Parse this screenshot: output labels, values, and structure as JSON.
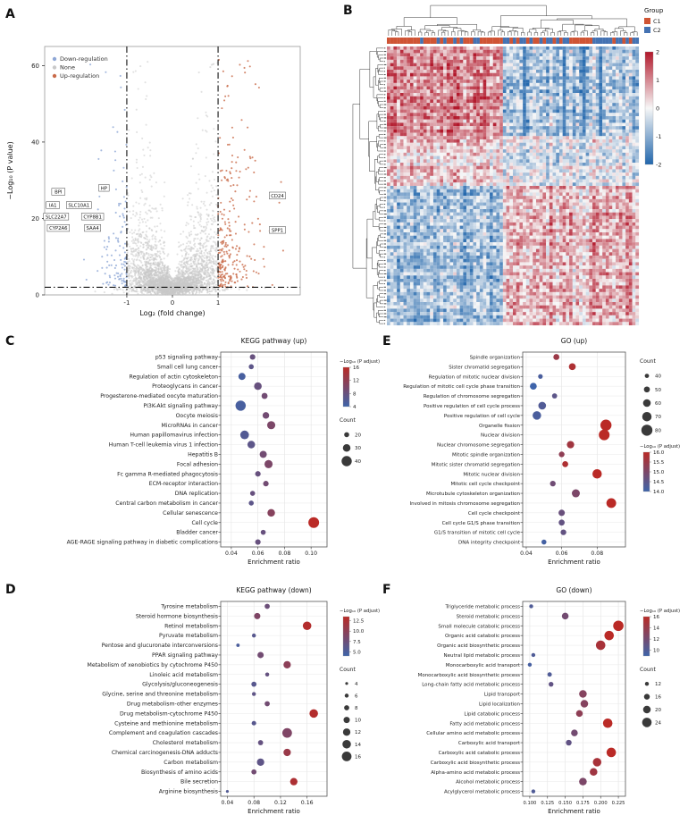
{
  "panel_labels": [
    "A",
    "B",
    "C",
    "D",
    "E",
    "F"
  ],
  "chart_data": [
    {
      "id": "volcano",
      "panel": "A",
      "type": "scatter",
      "title": "",
      "xlabel": "Log₂ (fold change)",
      "ylabel": "−Log₁₀ (P value)",
      "xlim": [
        -2.8,
        2.8
      ],
      "ylim": [
        0,
        65
      ],
      "xticks": [
        -1,
        0,
        1
      ],
      "yticks": [
        0,
        20,
        40,
        60
      ],
      "legend": [
        {
          "label": "Down-regulation",
          "color": "#8fa7d6"
        },
        {
          "label": "None",
          "color": "#c9c9c9"
        },
        {
          "label": "Up-regulation",
          "color": "#c96b4a"
        }
      ],
      "thresholds": {
        "vlines": [
          -1,
          1
        ],
        "hline": 2
      },
      "gene_labels": [
        {
          "text": "BPI",
          "x": -2.5,
          "y": 27
        },
        {
          "text": "HP",
          "x": -1.5,
          "y": 28
        },
        {
          "text": "IA1",
          "x": -2.62,
          "y": 23.5
        },
        {
          "text": "SLC10A1",
          "x": -2.05,
          "y": 23.5
        },
        {
          "text": "SLC22A7",
          "x": -2.55,
          "y": 20.5
        },
        {
          "text": "CYP8B1",
          "x": -1.75,
          "y": 20.5
        },
        {
          "text": "CYP2A6",
          "x": -2.5,
          "y": 17.5
        },
        {
          "text": "SAA4",
          "x": -1.75,
          "y": 17.5
        },
        {
          "text": "CD24",
          "x": 2.3,
          "y": 26
        },
        {
          "text": "SPP1",
          "x": 2.3,
          "y": 17
        }
      ],
      "sim": {
        "seed": 9,
        "n": 3800
      }
    },
    {
      "id": "heatmap",
      "panel": "B",
      "type": "heatmap",
      "legend_group_title": "Group",
      "groups": [
        {
          "label": "C1",
          "color": "#cf5434"
        },
        {
          "label": "C2",
          "color": "#4472b2"
        }
      ],
      "colorbar": {
        "ticks": [
          2,
          1,
          0,
          -1,
          -2
        ],
        "max_color": "#b2182b",
        "mid_color": "#f7f7f7",
        "min_color": "#2166ac"
      },
      "grid": {
        "rows": 84,
        "cols": 76,
        "seed": 11,
        "blocks": [
          {
            "r": [
              0,
              0.32
            ],
            "c": [
              0,
              0.45
            ],
            "bias": 1.25
          },
          {
            "r": [
              0,
              0.32
            ],
            "c": [
              0.45,
              1
            ],
            "bias": -0.85
          },
          {
            "r": [
              0.32,
              0.5
            ],
            "c": [
              0,
              0.45
            ],
            "bias": 0.55
          },
          {
            "r": [
              0.32,
              0.5
            ],
            "c": [
              0.45,
              1
            ],
            "bias": -0.25
          },
          {
            "r": [
              0.5,
              1
            ],
            "c": [
              0,
              0.45
            ],
            "bias": -0.95
          },
          {
            "r": [
              0.5,
              1
            ],
            "c": [
              0.45,
              1
            ],
            "bias": 0.8
          }
        ]
      }
    },
    {
      "id": "kegg_up",
      "panel": "C",
      "type": "bubble",
      "title": "KEGG pathway (up)",
      "xlabel": "Enrichment ratio",
      "xlim": [
        0.032,
        0.112
      ],
      "xticks": [
        0.04,
        0.06,
        0.08,
        0.1
      ],
      "xtick_decimals": 2,
      "color_legend": {
        "title": "−Log₁₀ (P adjust)",
        "domain": [
          4,
          16
        ],
        "ticks": [
          16,
          12,
          8,
          4
        ],
        "tick_decimals": 0
      },
      "count_legend": {
        "title": "Count",
        "values": [
          20,
          30,
          40
        ],
        "count_range": [
          20,
          42
        ],
        "r_range": [
          2.8,
          6
        ]
      },
      "legend_order": [
        "color",
        "count"
      ],
      "categories": [
        "p53 signaling pathway",
        "Small cell lung cancer",
        "Regulation of actin cytoskeleton",
        "Proteoglycans in cancer",
        "Progesterone-mediated oocyte maturation",
        "PI3K-Akt signaling pathway",
        "Oocyte meiosis",
        "MicroRNAs in cancer",
        "Human papillomavirus infection",
        "Human T-cell leukemia virus 1 infection",
        "Hepatitis B",
        "Focal adhesion",
        "Fc gamma R-mediated phagocytosis",
        "ECM-receptor interaction",
        "DNA replication",
        "Central carbon metabolism in cancer",
        "Cellular senescence",
        "Cell cycle",
        "Bladder cancer",
        "AGE-RAGE signaling pathway in diabetic complications"
      ],
      "x": [
        0.056,
        0.055,
        0.048,
        0.06,
        0.065,
        0.047,
        0.066,
        0.07,
        0.05,
        0.055,
        0.064,
        0.068,
        0.06,
        0.066,
        0.056,
        0.055,
        0.07,
        0.102,
        0.064,
        0.06
      ],
      "count": [
        22,
        20,
        28,
        30,
        24,
        40,
        26,
        32,
        34,
        30,
        28,
        32,
        22,
        22,
        20,
        20,
        30,
        42,
        20,
        22
      ],
      "padj": [
        8,
        7,
        5,
        8,
        9,
        5,
        9,
        10,
        6,
        7,
        9,
        10,
        8,
        9,
        8,
        7,
        11,
        16,
        8,
        8
      ]
    },
    {
      "id": "kegg_down",
      "panel": "D",
      "type": "bubble",
      "title": "KEGG pathway (down)",
      "xlabel": "Enrichment ratio",
      "xlim": [
        0.03,
        0.19
      ],
      "xticks": [
        0.04,
        0.08,
        0.12,
        0.16
      ],
      "xtick_decimals": 2,
      "color_legend": {
        "title": "−Log₁₀ (P adjust)",
        "domain": [
          4,
          13.5
        ],
        "ticks": [
          12.5,
          10,
          7.5,
          5
        ],
        "tick_decimals": 1
      },
      "count_legend": {
        "title": "Count",
        "values": [
          4,
          6,
          8,
          10,
          12,
          14,
          16
        ],
        "count_range": [
          4,
          16
        ],
        "r_range": [
          1.6,
          5.4
        ]
      },
      "legend_order": [
        "color",
        "count"
      ],
      "categories": [
        "Tyrosine metabolism",
        "Steroid hormone biosynthesis",
        "Retinol metabolism",
        "Pyruvate metabolism",
        "Pentose and glucuronate interconversions",
        "PPAR signaling pathway",
        "Metabolism of xenobiotics by cytochrome P450",
        "Linoleic acid metabolism",
        "Glycolysis/gluconeogenesis",
        "Glycine, serine and threonine metabolism",
        "Drug metabolism-other enzymes",
        "Drug metabolism-cytochrome P450",
        "Cysteine and methionine metabolism",
        "Complement and coagulation cascades",
        "Cholesterol metabolism",
        "Chemical carcinogenesis-DNA adducts",
        "Carbon metabolism",
        "Biosynthesis of amino acids",
        "Bile secretion",
        "Arginine biosynthesis"
      ],
      "x": [
        0.1,
        0.085,
        0.16,
        0.08,
        0.056,
        0.09,
        0.13,
        0.1,
        0.08,
        0.08,
        0.1,
        0.17,
        0.08,
        0.13,
        0.09,
        0.13,
        0.09,
        0.08,
        0.14,
        0.04
      ],
      "count": [
        8,
        10,
        14,
        6,
        5,
        10,
        12,
        6,
        8,
        6,
        8,
        14,
        7,
        16,
        8,
        12,
        12,
        8,
        12,
        4
      ],
      "padj": [
        7.5,
        9,
        13,
        6,
        5,
        8,
        10,
        7,
        6,
        6.5,
        8,
        13,
        6,
        9,
        7,
        11,
        6.5,
        8,
        12.5,
        5.5
      ]
    },
    {
      "id": "go_up",
      "panel": "E",
      "type": "bubble",
      "title": "GO (up)",
      "xlabel": "Enrichment ratio",
      "xlim": [
        0.038,
        0.096
      ],
      "xticks": [
        0.04,
        0.06,
        0.08
      ],
      "xtick_decimals": 2,
      "color_legend": {
        "title": "−Log₁₀ (P adjust)",
        "domain": [
          14,
          16
        ],
        "ticks": [
          16,
          15.5,
          15,
          14.5,
          14
        ],
        "tick_decimals": 1
      },
      "count_legend": {
        "title": "Count",
        "values": [
          40,
          50,
          60,
          70,
          80
        ],
        "count_range": [
          40,
          80
        ],
        "r_range": [
          2.4,
          6.2
        ]
      },
      "legend_order": [
        "count",
        "color"
      ],
      "categories": [
        "Spindle organization",
        "Sister chromatid segregation",
        "Regulation of mitotic nuclear division",
        "Regulation of mitotic cell cycle phase transition",
        "Regulation of chromosome segregation",
        "Positive regulation of cell cycle process",
        "Positive regulation of cell cycle",
        "Organelle fission",
        "Nuclear division",
        "Nuclear chromosome segregation",
        "Mitotic spindle organization",
        "Mitotic sister chromatid segregation",
        "Mitotic nuclear division",
        "Mitotic cell cycle checkpoint",
        "Microtubule cytoskeleton organization",
        "Involved in mitosis chromosome segregation",
        "Cell cycle checkpoint",
        "Cell cycle G1/S phase transition",
        "G1/S transition of mitotic cell cycle",
        "DNA integrity checkpoint"
      ],
      "x": [
        0.057,
        0.066,
        0.048,
        0.044,
        0.056,
        0.049,
        0.046,
        0.085,
        0.084,
        0.065,
        0.06,
        0.062,
        0.08,
        0.055,
        0.068,
        0.088,
        0.06,
        0.06,
        0.061,
        0.05
      ],
      "count": [
        50,
        55,
        42,
        55,
        45,
        60,
        65,
        80,
        78,
        58,
        48,
        50,
        70,
        48,
        62,
        72,
        52,
        50,
        48,
        44
      ],
      "padj": [
        15.5,
        15.8,
        14.2,
        14,
        14.5,
        14.3,
        14.2,
        16,
        16,
        15.6,
        15.3,
        15.8,
        16,
        14.8,
        15,
        16,
        14.7,
        14.6,
        14.6,
        14.1
      ]
    },
    {
      "id": "go_down",
      "panel": "F",
      "type": "bubble",
      "title": "GO (down)",
      "xlabel": "Enrichment ratio",
      "xlim": [
        0.09,
        0.235
      ],
      "xticks": [
        0.1,
        0.125,
        0.15,
        0.175,
        0.2,
        0.225
      ],
      "xtick_decimals": 3,
      "color_legend": {
        "title": "−Log₁₀ (P adjust)",
        "domain": [
          9,
          16
        ],
        "ticks": [
          16,
          14,
          12,
          10
        ],
        "tick_decimals": 0
      },
      "count_legend": {
        "title": "Count",
        "values": [
          12,
          16,
          20,
          24
        ],
        "count_range": [
          12,
          26
        ],
        "r_range": [
          2.2,
          5.8
        ]
      },
      "legend_order": [
        "color",
        "count"
      ],
      "categories": [
        "Triglyceride metabolic process",
        "Steroid metabolic process",
        "Small molecule catabolic process",
        "Organic acid catabolic process",
        "Organic acid biosynthetic process",
        "Neutral lipid metabolic process",
        "Monocarboxylic acid transport",
        "Monocarboxylic acid biosynthetic process",
        "Long-chain fatty acid metabolic process",
        "Lipid transport",
        "Lipid localization",
        "Lipid catabolic process",
        "Fatty acid metabolic process",
        "Cellular amino acid metabolic process",
        "Carboxylic acid transport",
        "Carboxylic acid catabolic process",
        "Carboxylic acid biosynthetic process",
        "Alpha-amino acid metabolic process",
        "Alcohol metabolic process",
        "Acylglycerol metabolic process"
      ],
      "x": [
        0.102,
        0.15,
        0.225,
        0.212,
        0.2,
        0.105,
        0.1,
        0.128,
        0.13,
        0.175,
        0.177,
        0.17,
        0.21,
        0.163,
        0.155,
        0.215,
        0.195,
        0.19,
        0.175,
        0.105
      ],
      "count": [
        12,
        18,
        26,
        24,
        24,
        12,
        12,
        13,
        14,
        20,
        20,
        18,
        24,
        18,
        16,
        24,
        22,
        20,
        20,
        12
      ],
      "padj": [
        10,
        12,
        16,
        16,
        15,
        10,
        9.5,
        10,
        11,
        13,
        13,
        13.5,
        16,
        12,
        11,
        16,
        15,
        14.5,
        12.5,
        10
      ]
    }
  ]
}
